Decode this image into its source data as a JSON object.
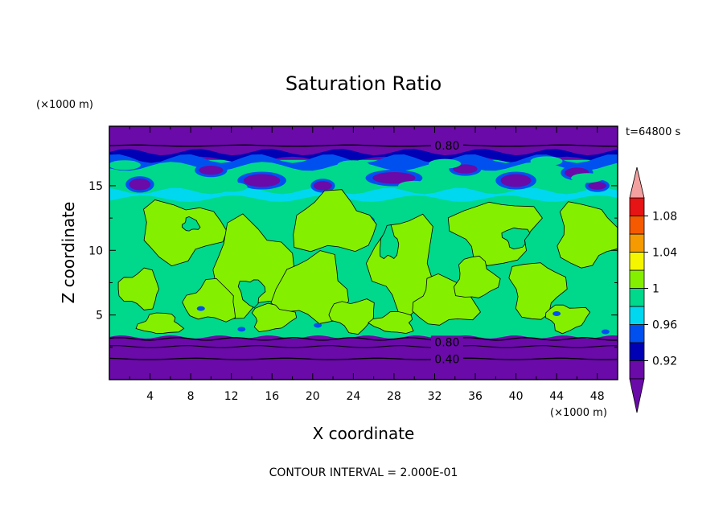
{
  "chart_data": {
    "type": "heatmap",
    "title": "Saturation Ratio",
    "xlabel": "X coordinate",
    "ylabel": "Z coordinate",
    "x_unit": "(×1000 m)",
    "y_unit": "(×1000 m)",
    "time_label": "t=64800 s",
    "contour_interval_text": "CONTOUR INTERVAL = 2.000E-01",
    "xlim": [
      0,
      50
    ],
    "ylim": [
      0,
      19.6
    ],
    "x_ticks": [
      "4",
      "8",
      "12",
      "16",
      "20",
      "24",
      "28",
      "32",
      "36",
      "40",
      "44",
      "48"
    ],
    "y_ticks": [
      "5",
      "10",
      "15"
    ],
    "contour_labels": [
      {
        "text": "0.80",
        "x": 17,
        "z": 18.1
      },
      {
        "text": "0.80",
        "x": 17,
        "z": 2.9
      },
      {
        "text": "0.40",
        "x": 17,
        "z": 1.6
      }
    ],
    "colorbar": {
      "levels": [
        0.9,
        0.92,
        0.94,
        0.96,
        0.98,
        1.0,
        1.02,
        1.04,
        1.06,
        1.08,
        1.1
      ],
      "labels": [
        "0.92",
        "0.96",
        "1",
        "1.04",
        "1.08"
      ],
      "colors": [
        "#6a0aa8",
        "#0000b4",
        "#0050f0",
        "#00d8f0",
        "#00d88c",
        "#84f000",
        "#f5f500",
        "#f59a00",
        "#f55a00",
        "#e61414",
        "#f2a0a0"
      ],
      "under_color": "#6a0aa8",
      "over_color": "#f2a0a0"
    }
  }
}
